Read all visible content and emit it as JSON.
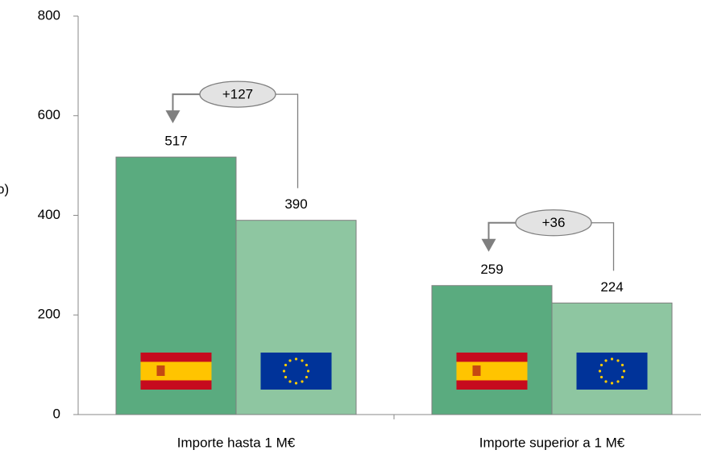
{
  "chart_data": {
    "type": "bar",
    "y_label": "o)",
    "categories": [
      "Importe hasta 1 M€",
      "Importe superior a 1 M€"
    ],
    "series": [
      {
        "color": "#5aab7f",
        "values": [
          517,
          259
        ]
      },
      {
        "color": "#8ec6a1",
        "values": [
          390,
          224
        ]
      }
    ],
    "annotations": [
      {
        "text": "+127"
      },
      {
        "text": "+36"
      }
    ],
    "ylim": [
      0,
      800
    ],
    "yticks": [
      0,
      200,
      400,
      600,
      800
    ],
    "grid": false
  }
}
